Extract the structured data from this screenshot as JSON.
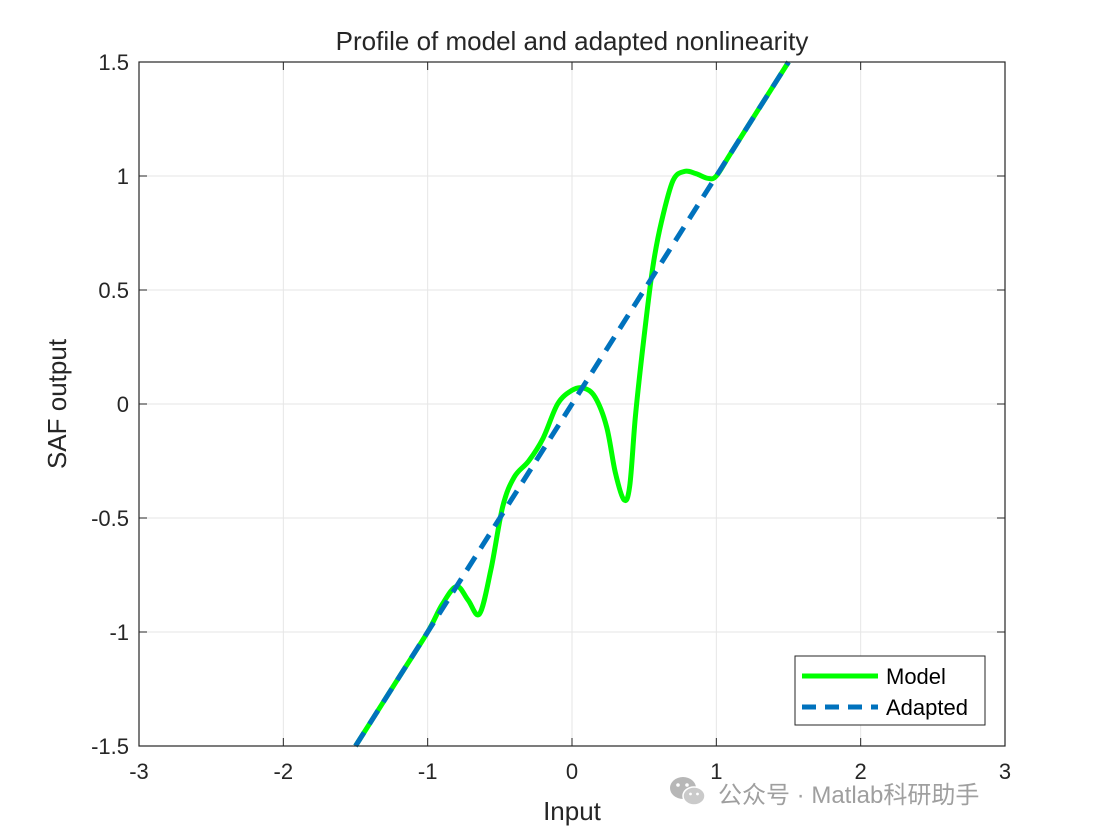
{
  "chart_data": {
    "type": "line",
    "title": "Profile of model and adapted nonlinearity",
    "xlabel": "Input",
    "ylabel": "SAF output",
    "xlim": [
      -3,
      3
    ],
    "ylim": [
      -1.5,
      1.5
    ],
    "xticks": [
      -3,
      -2,
      -1,
      0,
      1,
      2,
      3
    ],
    "xtick_labels": [
      "-3",
      "-2",
      "-1",
      "0",
      "1",
      "2",
      "3"
    ],
    "yticks": [
      -1.5,
      -1,
      -0.5,
      0,
      0.5,
      1,
      1.5
    ],
    "ytick_labels": [
      "-1.5",
      "-1",
      "-0.5",
      "0",
      "0.5",
      "1",
      "1.5"
    ],
    "grid": true,
    "legend_position": "bottom-right",
    "series": [
      {
        "name": "Model",
        "color": "#00ff00",
        "style": "solid",
        "x": [
          -1.5,
          -1.2,
          -1.0,
          -0.9,
          -0.8,
          -0.72,
          -0.64,
          -0.56,
          -0.48,
          -0.4,
          -0.3,
          -0.2,
          -0.1,
          0.0,
          0.08,
          0.16,
          0.24,
          0.3,
          0.36,
          0.4,
          0.44,
          0.5,
          0.56,
          0.62,
          0.7,
          0.78,
          0.86,
          0.94,
          1.0,
          1.1,
          1.3,
          1.5
        ],
        "y": [
          -1.5,
          -1.2,
          -1.0,
          -0.88,
          -0.8,
          -0.86,
          -0.92,
          -0.72,
          -0.45,
          -0.32,
          -0.25,
          -0.15,
          0.0,
          0.06,
          0.07,
          0.03,
          -0.1,
          -0.3,
          -0.42,
          -0.36,
          -0.05,
          0.3,
          0.6,
          0.8,
          0.98,
          1.02,
          1.01,
          0.99,
          1.0,
          1.1,
          1.3,
          1.5
        ]
      },
      {
        "name": "Adapted",
        "color": "#0072bd",
        "style": "dashed",
        "x": [
          -1.5,
          1.5
        ],
        "y": [
          -1.5,
          1.5
        ]
      }
    ]
  },
  "watermark": {
    "text": "公众号 · Matlab科研助手",
    "icon": "wechat-icon"
  }
}
